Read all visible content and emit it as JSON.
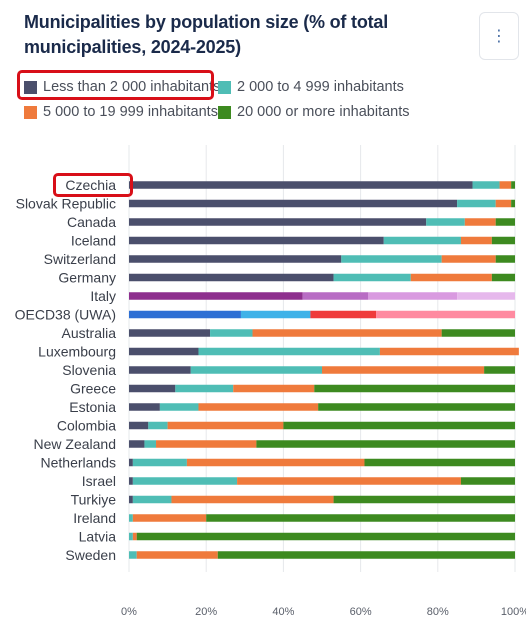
{
  "title": "Municipalities by population size (% of total municipalities, 2024-2025)",
  "menu_icon": "more-vertical-icon",
  "colors": {
    "series": [
      "#4b4f6c",
      "#4fbdb5",
      "#ef7a3c",
      "#3d8a20"
    ],
    "oecd_series": [
      "#2e6fd4",
      "#3fb2e8",
      "#ef3b3b",
      "#ff8aa0"
    ],
    "italy_series": [
      "#8e2f8e",
      "#b86cc4",
      "#d99ae0",
      "#e6b8ec"
    ],
    "highlight": "#d80f18"
  },
  "legend": [
    "Less than 2 000 inhabitants",
    "2 000 to 4 999 inhabitants",
    "5 000 to 19 999 inhabitants",
    "20 000 or more inhabitants"
  ],
  "chart_data": {
    "type": "bar",
    "orientation": "horizontal",
    "stacked": true,
    "title": "Municipalities by population size (% of total municipalities, 2024-2025)",
    "categories": [
      "Czechia",
      "Slovak Republic",
      "Canada",
      "Iceland",
      "Switzerland",
      "Germany",
      "Italy",
      "OECD38 (UWA)",
      "Australia",
      "Luxembourg",
      "Slovenia",
      "Greece",
      "Estonia",
      "Colombia",
      "New Zealand",
      "Netherlands",
      "Israel",
      "Turkiye",
      "Ireland",
      "Latvia",
      "Sweden"
    ],
    "series": [
      {
        "name": "Less than 2 000 inhabitants",
        "values": [
          89,
          85,
          77,
          66,
          55,
          53,
          45,
          29,
          21,
          18,
          16,
          12,
          8,
          5,
          4,
          1,
          1,
          1,
          0,
          0,
          0
        ]
      },
      {
        "name": "2 000 to 4 999 inhabitants",
        "values": [
          7,
          10,
          10,
          20,
          26,
          20,
          17,
          18,
          11,
          47,
          34,
          15,
          10,
          5,
          3,
          14,
          27,
          10,
          1,
          1,
          2
        ]
      },
      {
        "name": "5 000 to 19 999 inhabitants",
        "values": [
          3,
          4,
          8,
          8,
          14,
          21,
          23,
          17,
          49,
          36,
          42,
          21,
          31,
          30,
          26,
          46,
          58,
          42,
          19,
          1,
          21
        ]
      },
      {
        "name": "20 000 or more inhabitants",
        "values": [
          1,
          1,
          5,
          6,
          5,
          6,
          15,
          36,
          19,
          0,
          8,
          52,
          51,
          60,
          67,
          39,
          14,
          47,
          80,
          98,
          77
        ]
      }
    ],
    "xlim": [
      0,
      100
    ],
    "xticks": [
      "0%",
      "20%",
      "40%",
      "60%",
      "80%",
      "100%"
    ],
    "grid": true,
    "legend_position": "top",
    "highlighted_category": "Czechia",
    "highlighted_series": "Less than 2 000 inhabitants"
  }
}
